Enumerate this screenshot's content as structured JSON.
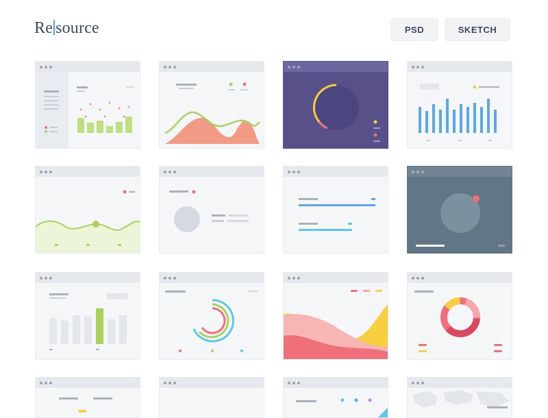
{
  "logo": {
    "prefix": "Re",
    "suffix": "source"
  },
  "buttons": {
    "psd": "PSD",
    "sketch": "SKETCH"
  },
  "colors": {
    "green": "#a9d25c",
    "coral": "#f29a83",
    "purple": "#575089",
    "blue": "#5aa7ee",
    "slate": "#617686",
    "red": "#ef6f7a",
    "yellow": "#f7cf40",
    "cyan": "#5dc7ea"
  },
  "cards": [
    {
      "name": "bar-chart-sidebar-card",
      "theme": "light"
    },
    {
      "name": "area-chart-card",
      "theme": "light"
    },
    {
      "name": "radial-progress-card",
      "theme": "dark1"
    },
    {
      "name": "column-chart-blue-card",
      "theme": "light"
    },
    {
      "name": "line-wave-card",
      "theme": "light"
    },
    {
      "name": "profile-card",
      "theme": "light"
    },
    {
      "name": "progress-bars-card",
      "theme": "light"
    },
    {
      "name": "knob-dial-card",
      "theme": "dark2"
    },
    {
      "name": "highlight-bar-card",
      "theme": "light"
    },
    {
      "name": "concentric-rings-card",
      "theme": "light"
    },
    {
      "name": "stacked-area-card",
      "theme": "light"
    },
    {
      "name": "donut-chart-card",
      "theme": "light"
    },
    {
      "name": "partial-card-1",
      "theme": "light"
    },
    {
      "name": "partial-card-2",
      "theme": "light"
    },
    {
      "name": "partial-card-3",
      "theme": "light"
    },
    {
      "name": "map-card",
      "theme": "light"
    }
  ]
}
